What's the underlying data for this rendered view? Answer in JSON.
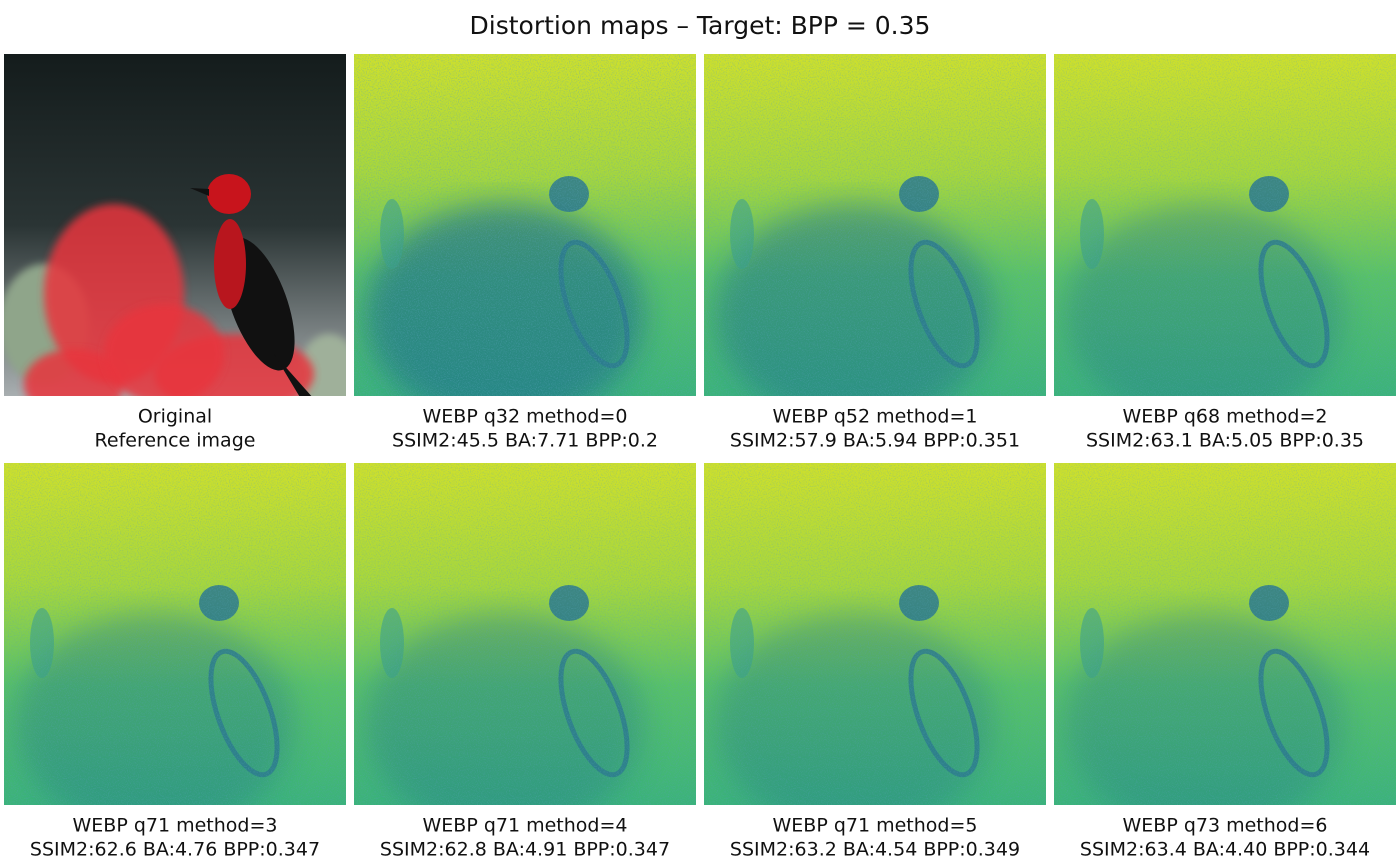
{
  "title": "Distortion maps – Target: BPP = 0.35",
  "panels": [
    {
      "line1": "Original",
      "line2": "Reference image"
    },
    {
      "line1": "WEBP q32 method=0",
      "line2": "SSIM2:45.5 BA:7.71 BPP:0.2"
    },
    {
      "line1": "WEBP q52 method=1",
      "line2": "SSIM2:57.9 BA:5.94 BPP:0.351"
    },
    {
      "line1": "WEBP q68 method=2",
      "line2": "SSIM2:63.1 BA:5.05 BPP:0.35"
    },
    {
      "line1": "WEBP q71 method=3",
      "line2": "SSIM2:62.6 BA:4.76 BPP:0.347"
    },
    {
      "line1": "WEBP q71 method=4",
      "line2": "SSIM2:62.8 BA:4.91 BPP:0.347"
    },
    {
      "line1": "WEBP q71 method=5",
      "line2": "SSIM2:63.2 BA:4.54 BPP:0.349"
    },
    {
      "line1": "WEBP q73 method=6",
      "line2": "SSIM2:63.4 BA:4.40 BPP:0.344"
    }
  ]
}
